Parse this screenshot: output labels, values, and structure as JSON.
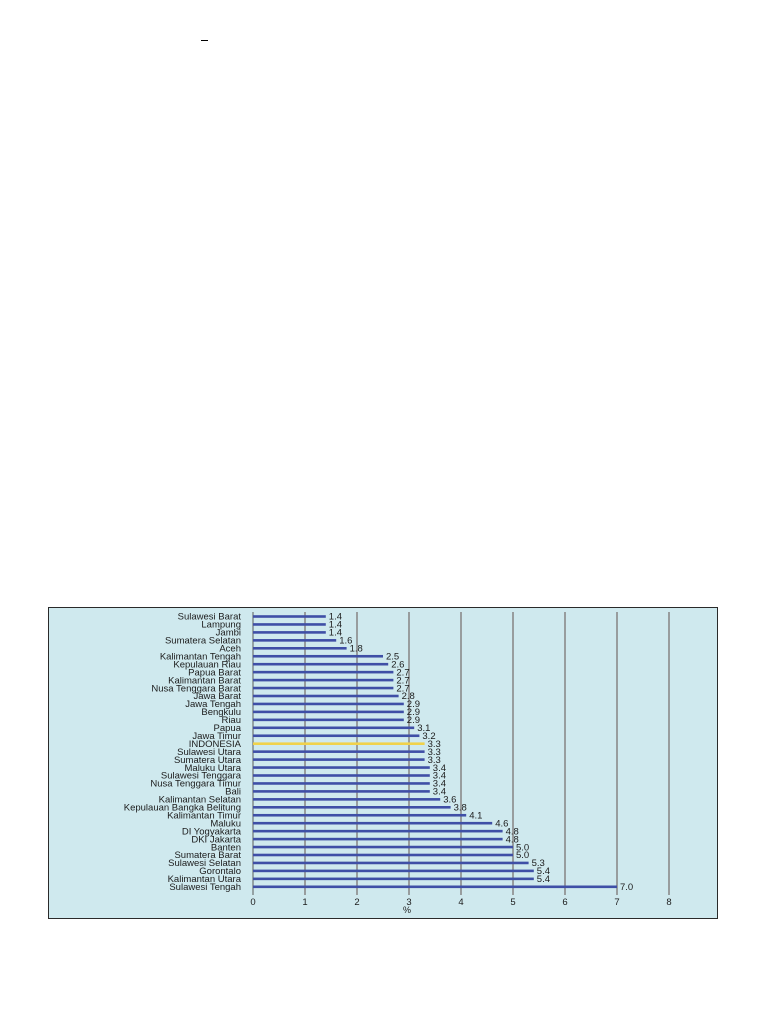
{
  "chart_data": {
    "type": "bar",
    "orientation": "horizontal",
    "categories": [
      "Sulawesi Barat",
      "Lampung",
      "Jambi",
      "Sumatera Selatan",
      "Aceh",
      "Kalimantan Tengah",
      "Kepulauan Riau",
      "Papua Barat",
      "Kalimantan Barat",
      "Nusa Tenggara Barat",
      "Jawa Barat",
      "Jawa Tengah",
      "Bengkulu",
      "Riau",
      "Papua",
      "Jawa Timur",
      "INDONESIA",
      "Sulawesi Utara",
      "Sumatera Utara",
      "Maluku Utara",
      "Sulawesi Tenggara",
      "Nusa Tenggara Timur",
      "Bali",
      "Kalimantan Selatan",
      "Kepulauan Bangka Belitung",
      "Kalimantan Timur",
      "Maluku",
      "DI Yogyakarta",
      "DKI Jakarta",
      "Banten",
      "Sumatera Barat",
      "Sulawesi Selatan",
      "Gorontalo",
      "Kalimantan Utara",
      "Sulawesi Tengah"
    ],
    "values": [
      1.4,
      1.4,
      1.4,
      1.6,
      1.8,
      2.5,
      2.6,
      2.7,
      2.7,
      2.7,
      2.8,
      2.9,
      2.9,
      2.9,
      3.1,
      3.2,
      3.3,
      3.3,
      3.3,
      3.4,
      3.4,
      3.4,
      3.4,
      3.6,
      3.8,
      4.1,
      4.6,
      4.8,
      4.8,
      5.0,
      5.0,
      5.3,
      5.4,
      5.4,
      7.0
    ],
    "value_labels": [
      "1.4",
      "1.4",
      "1.4",
      "1.6",
      "1.8",
      "2.5",
      "2.6",
      "2.7",
      "2.7",
      "2.7",
      "2.8",
      "2.9",
      "2.9",
      "2.9",
      "3.1",
      "3.2",
      "3.3",
      "3.3",
      "3.3",
      "3.4",
      "3.4",
      "3.4",
      "3.4",
      "3.6",
      "3.8",
      "4.1",
      "4.6",
      "4.8",
      "4.8",
      "5.0",
      "5.0",
      "5.3",
      "5.4",
      "5.4",
      "7.0"
    ],
    "highlight_category": "INDONESIA",
    "xlabel": "%",
    "xlim": [
      0,
      8
    ],
    "xticks": [
      "0",
      "1",
      "2",
      "3",
      "4",
      "5",
      "6",
      "7",
      "8"
    ],
    "grid": "vertical",
    "colors": {
      "bar": "#3f4fa6",
      "highlight": "#f0d24a",
      "grid": "#8a8a8a",
      "background": "#cfe9ee"
    }
  }
}
